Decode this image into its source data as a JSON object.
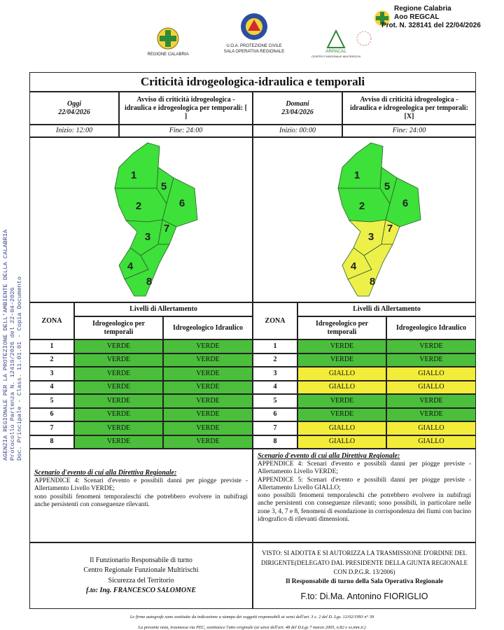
{
  "header": {
    "logos": [
      {
        "lines": [
          "REGIONE CALABRIA"
        ]
      },
      {
        "lines": [
          "U.O.A. PROTEZIONE CIVILE",
          "SALA OPERATIVA REGIONALE"
        ]
      },
      {
        "lines": [
          "ARPACAL",
          "CENTRO FUNZIONALE MULTIRISCHI"
        ]
      }
    ],
    "protocol": [
      "Regione Calabria",
      "Aoo REGCAL",
      "Prot. N. 328141 del 22/04/2026"
    ]
  },
  "side_stamp": [
    "AGENZIA REGIONALE PER LA PROTEZIONE DELL'AMBIENTE DELLA CALABRIA",
    "Protocollo Partenza N. 12419/2026 del 22-04-2026",
    "Doc. Principale - Class. 11.01.01 - Copia Documento"
  ],
  "title": "Criticità idrogeologica-idraulica e temporali",
  "level_colors": {
    "VERDE": {
      "cell": "#4bbf3c",
      "map": "#3ee03a"
    },
    "GIALLO": {
      "cell": "#f3ec3a",
      "map": "#eef04a"
    }
  },
  "panels": [
    {
      "day": "Oggi",
      "date": "22/04/2026",
      "notice": "Avviso di criticità idrogeologica - idraulica e idrogeologica per temporali: [ ]",
      "start": "Inizio: 12:00",
      "end": "Fine: 24:00",
      "table": {
        "zone_header": "ZONA",
        "levels_header": "Livelli di Allertamento",
        "columns": [
          "Idrogeologico per temporali",
          "Idrogeologico Idraulico"
        ],
        "rows": [
          [
            "1",
            "VERDE",
            "VERDE"
          ],
          [
            "2",
            "VERDE",
            "VERDE"
          ],
          [
            "3",
            "VERDE",
            "VERDE"
          ],
          [
            "4",
            "VERDE",
            "VERDE"
          ],
          [
            "5",
            "VERDE",
            "VERDE"
          ],
          [
            "6",
            "VERDE",
            "VERDE"
          ],
          [
            "7",
            "VERDE",
            "VERDE"
          ],
          [
            "8",
            "VERDE",
            "VERDE"
          ]
        ]
      },
      "scenario": {
        "heading": "Scenario d'evento di cui alla Direttiva Regionale:",
        "paragraphs": [
          "APPENDICE 4: Scenari d'evento e possibili danni per piogge previste - Allertamento Livello VERDE;",
          "sono possibili fenomeni temporaleschi che potrebbero evolvere in nubifragi anche persistenti con conseguenze rilevanti."
        ]
      },
      "signature": [
        "Il Funzionario Responsabile di turno",
        "Centro Regionale Funzionale Multirischi",
        "Sicurezza del Territorio",
        "f.to: Ing. FRANCESCO SALOMONE"
      ]
    },
    {
      "day": "Domani",
      "date": "23/04/2026",
      "notice": "Avviso di criticità idrogeologica - idraulica e idrogeologica per temporali: [X]",
      "start": "Inizio: 00:00",
      "end": "Fine: 24:00",
      "table": {
        "zone_header": "ZONA",
        "levels_header": "Livelli di Allertamento",
        "columns": [
          "Idrogeologico per temporali",
          "Idrogeologico Idraulico"
        ],
        "rows": [
          [
            "1",
            "VERDE",
            "VERDE"
          ],
          [
            "2",
            "VERDE",
            "VERDE"
          ],
          [
            "3",
            "GIALLO",
            "GIALLO"
          ],
          [
            "4",
            "GIALLO",
            "GIALLO"
          ],
          [
            "5",
            "VERDE",
            "VERDE"
          ],
          [
            "6",
            "VERDE",
            "VERDE"
          ],
          [
            "7",
            "GIALLO",
            "GIALLO"
          ],
          [
            "8",
            "GIALLO",
            "GIALLO"
          ]
        ]
      },
      "scenario": {
        "heading": "Scenario d'evento di cui alla Direttiva Regionale:",
        "paragraphs": [
          "APPENDICE 4: Scenari d'evento e possibili danni per piogge previste - Allertamento Livello VERDE;",
          "APPENDICE 5: Scenari d'evento e possibili danni per piogge previste - Allertamento Livello GIALLO;",
          "sono possibili fenomeni temporaleschi che potrebbero evolvere in nubifragi anche persistenti con conseguenze rilevanti; sono possibili, in particolare nelle zone 3, 4, 7 e 8, fenomeni di esondazione in corrispondenza dei fiumi con bacino idrografico di rilevanti dimensioni."
        ]
      },
      "signature": [
        "VISTO: SI ADOTTA E SI AUTORIZZA LA TRASMISSIONE D'ORDINE DEL DIRIGENTE(DELEGATO DAL PRESIDENTE DELLA GIUNTA REGIONALE CON D.P.G.R. 13/2006)",
        "Il Responsabile di turno della Sala Operativa Regionale",
        "F.to: Di.Ma. Antonino FIORIGLIO"
      ]
    }
  ],
  "footnotes": [
    "Le firme autografe sono sostituite da indicazione a stampa dei soggetti responsabili ai sensi dell'art. 3 c. 2 del D. Lgs. 12/02/1993 n° 39",
    "La presente nota, trasmessa via PEC, sostituisce l'atto originale (ai sensi dell'art. 48 del D.Lgs 7 marzo 2005, n.82 e ss.mm.ii.)"
  ]
}
